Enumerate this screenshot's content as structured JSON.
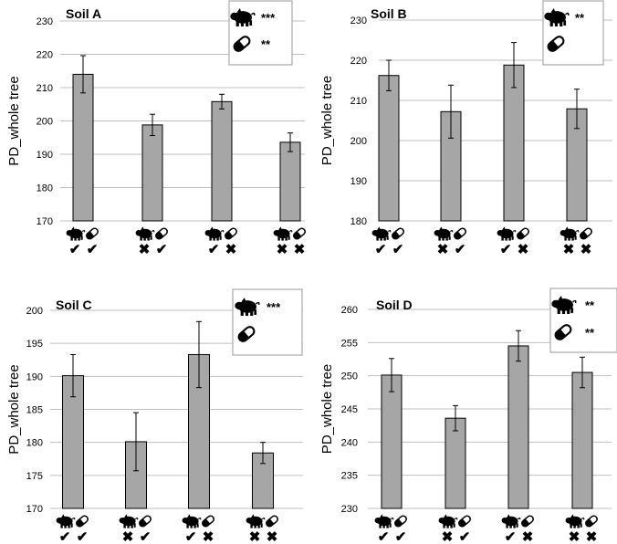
{
  "chart_data": [
    {
      "type": "bar",
      "title": "Soil A",
      "ylabel": "PD_whole tree",
      "ylim": [
        170,
        230
      ],
      "yticks": [
        170,
        180,
        190,
        200,
        210,
        220,
        230
      ],
      "values": [
        214,
        198.8,
        205.8,
        193.6
      ],
      "error": [
        5.6,
        3.2,
        2.2,
        2.8
      ],
      "categories": [
        {
          "manure": "✔",
          "antibiotic": "✔"
        },
        {
          "manure": "✖",
          "antibiotic": "✔"
        },
        {
          "manure": "✔",
          "antibiotic": "✖"
        },
        {
          "manure": "✖",
          "antibiotic": "✖"
        }
      ],
      "legend": {
        "manure_sig": "***",
        "antibiotic_sig": "**"
      }
    },
    {
      "type": "bar",
      "title": "Soil B",
      "ylabel": "PD_whole tree",
      "ylim": [
        180,
        230
      ],
      "yticks": [
        180,
        190,
        200,
        210,
        220,
        230
      ],
      "values": [
        216.2,
        207.2,
        218.8,
        207.9
      ],
      "error": [
        3.8,
        6.6,
        5.6,
        4.9
      ],
      "categories": [
        {
          "manure": "✔",
          "antibiotic": "✔"
        },
        {
          "manure": "✖",
          "antibiotic": "✔"
        },
        {
          "manure": "✔",
          "antibiotic": "✖"
        },
        {
          "manure": "✖",
          "antibiotic": "✖"
        }
      ],
      "legend": {
        "manure_sig": "**",
        "antibiotic_sig": ""
      }
    },
    {
      "type": "bar",
      "title": "Soil C",
      "ylabel": "PD_whole tree",
      "ylim": [
        170,
        200
      ],
      "yticks": [
        170,
        175,
        180,
        185,
        190,
        195,
        200
      ],
      "values": [
        190.1,
        180.1,
        193.3,
        178.4
      ],
      "error": [
        3.2,
        4.4,
        5.0,
        1.6
      ],
      "categories": [
        {
          "manure": "✔",
          "antibiotic": "✔"
        },
        {
          "manure": "✖",
          "antibiotic": "✔"
        },
        {
          "manure": "✔",
          "antibiotic": "✖"
        },
        {
          "manure": "✖",
          "antibiotic": "✖"
        }
      ],
      "legend": {
        "manure_sig": "***",
        "antibiotic_sig": ""
      }
    },
    {
      "type": "bar",
      "title": "Soil D",
      "ylabel": "PD_whole tree",
      "ylim": [
        230,
        260
      ],
      "yticks": [
        230,
        235,
        240,
        245,
        250,
        255,
        260
      ],
      "values": [
        250.1,
        243.6,
        254.5,
        250.5
      ],
      "error": [
        2.5,
        1.9,
        2.3,
        2.3
      ],
      "categories": [
        {
          "manure": "✔",
          "antibiotic": "✔"
        },
        {
          "manure": "✖",
          "antibiotic": "✔"
        },
        {
          "manure": "✔",
          "antibiotic": "✖"
        },
        {
          "manure": "✖",
          "antibiotic": "✖"
        }
      ],
      "legend": {
        "manure_sig": "**",
        "antibiotic_sig": "**"
      }
    }
  ],
  "colors": {
    "bar": "#a6a6a6",
    "bar_stroke": "#000000",
    "grid": "#bfbfbf",
    "icon": "#000000"
  },
  "icons": {
    "manure": "pig-icon",
    "antibiotic": "pill-capsule-icon"
  }
}
